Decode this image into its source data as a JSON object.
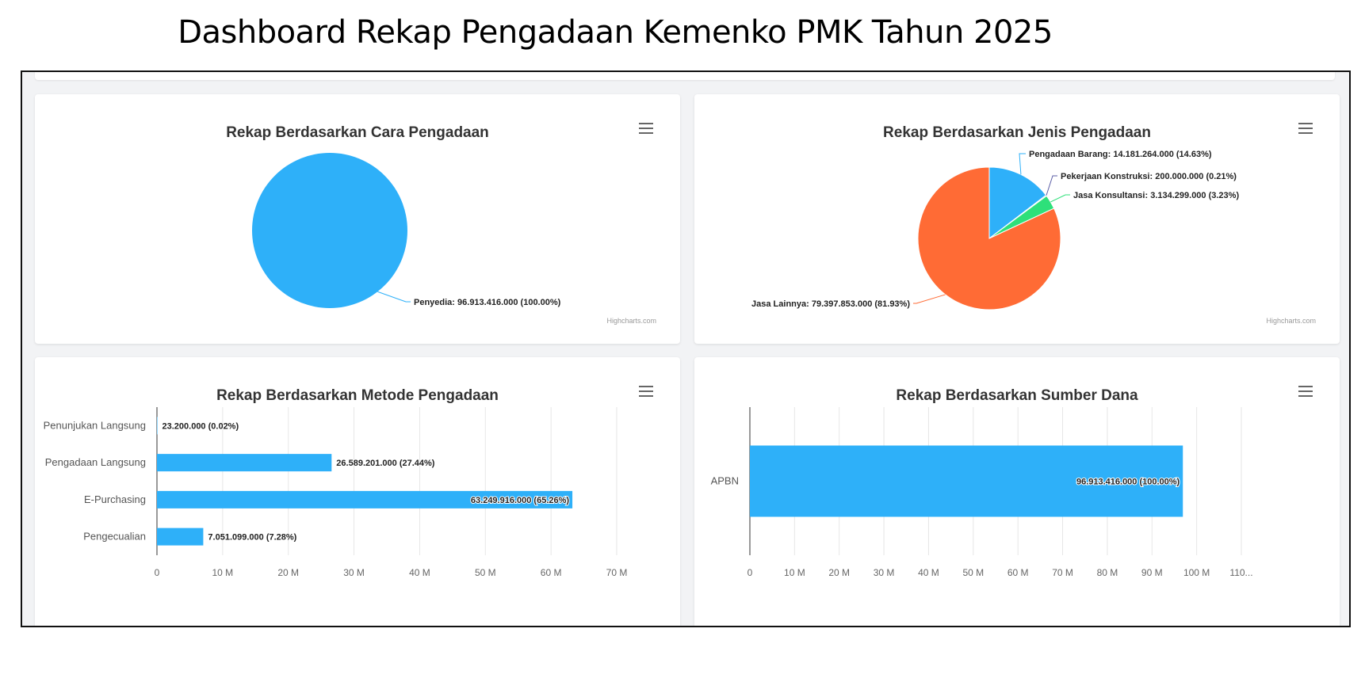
{
  "page": {
    "title": "Dashboard Rekap Pengadaan Kemenko PMK Tahun 2025"
  },
  "credit": "Highcharts.com",
  "chart_data": [
    {
      "type": "pie",
      "title": "Rekap Berdasarkan Cara Pengadaan",
      "slices": [
        {
          "name": "Penyedia",
          "value": 96913416000,
          "label": "Penyedia: 96.913.416.000 (100.00%)",
          "color": "#2eb0f9"
        }
      ]
    },
    {
      "type": "pie",
      "title": "Rekap Berdasarkan Jenis Pengadaan",
      "slices": [
        {
          "name": "Pengadaan Barang",
          "value": 14181264000,
          "label": "Pengadaan Barang: 14.181.264.000 (14.63%)",
          "color": "#2eb0f9"
        },
        {
          "name": "Pekerjaan Konstruksi",
          "value": 200000000,
          "label": "Pekerjaan Konstruksi: 200.000.000 (0.21%)",
          "color": "#5b5ea6"
        },
        {
          "name": "Jasa Konsultansi",
          "value": 3134299000,
          "label": "Jasa Konsultansi: 3.134.299.000 (3.23%)",
          "color": "#2ee07a"
        },
        {
          "name": "Jasa Lainnya",
          "value": 79397853000,
          "label": "Jasa Lainnya: 79.397.853.000 (81.93%)",
          "color": "#ff6b35"
        }
      ]
    },
    {
      "type": "bar",
      "title": "Rekap Berdasarkan Metode Pengadaan",
      "categories": [
        "Penunjukan Langsung",
        "Pengadaan Langsung",
        "E-Purchasing",
        "Pengecualian"
      ],
      "values": [
        23200000,
        26589201000,
        63249916000,
        7051099000
      ],
      "data_labels": [
        "23.200.000 (0.02%)",
        "26.589.201.000 (27.44%)",
        "63.249.916.000 (65.26%)",
        "7.051.099.000 (7.28%)"
      ],
      "xlim": [
        0,
        70000000000
      ],
      "ticks": [
        "0",
        "10 M",
        "20 M",
        "30 M",
        "40 M",
        "50 M",
        "60 M",
        "70 M"
      ],
      "grid": true,
      "color": "#2eb0f9"
    },
    {
      "type": "bar",
      "title": "Rekap Berdasarkan Sumber Dana",
      "categories": [
        "APBN"
      ],
      "values": [
        96913416000
      ],
      "data_labels": [
        "96.913.416.000 (100.00%)"
      ],
      "xlim": [
        0,
        110000000000
      ],
      "ticks": [
        "0",
        "10 M",
        "20 M",
        "30 M",
        "40 M",
        "50 M",
        "60 M",
        "70 M",
        "80 M",
        "90 M",
        "100 M",
        "110..."
      ],
      "grid": true,
      "color": "#2eb0f9"
    }
  ]
}
